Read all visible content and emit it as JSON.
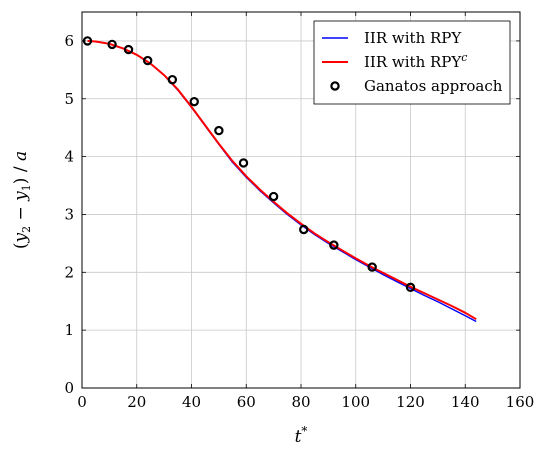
{
  "chart_data": {
    "type": "line",
    "xlabel": "t*",
    "ylabel": "(y2 − y1) / a",
    "xlim": [
      0,
      160
    ],
    "ylim": [
      0,
      6.5
    ],
    "xticks": [
      0,
      20,
      40,
      60,
      80,
      100,
      120,
      140,
      160
    ],
    "yticks": [
      0,
      1,
      2,
      3,
      4,
      5,
      6
    ],
    "grid": true,
    "legend_position": "top-right",
    "series": [
      {
        "name": "IIR with RPY",
        "style": "line",
        "color": "#0000ff",
        "x": [
          2,
          5,
          10,
          15,
          20,
          25,
          30,
          35,
          40,
          45,
          50,
          55,
          60,
          65,
          70,
          75,
          80,
          85,
          90,
          95,
          100,
          105,
          110,
          115,
          120,
          125,
          130,
          135,
          140,
          144
        ],
        "y": [
          6.0,
          5.99,
          5.95,
          5.87,
          5.76,
          5.61,
          5.41,
          5.15,
          4.85,
          4.53,
          4.21,
          3.9,
          3.64,
          3.41,
          3.2,
          3.0,
          2.82,
          2.65,
          2.5,
          2.36,
          2.22,
          2.09,
          1.96,
          1.84,
          1.72,
          1.6,
          1.49,
          1.37,
          1.25,
          1.15
        ]
      },
      {
        "name": "IIR with RPY",
        "name_sup": "c",
        "style": "line",
        "color": "#ff0000",
        "x": [
          2,
          5,
          10,
          15,
          20,
          25,
          30,
          35,
          40,
          45,
          50,
          55,
          60,
          65,
          70,
          75,
          80,
          85,
          90,
          95,
          100,
          105,
          110,
          115,
          120,
          125,
          130,
          135,
          140,
          144
        ],
        "y": [
          6.0,
          5.99,
          5.95,
          5.87,
          5.76,
          5.61,
          5.41,
          5.16,
          4.86,
          4.54,
          4.22,
          3.92,
          3.66,
          3.43,
          3.22,
          3.02,
          2.84,
          2.67,
          2.52,
          2.38,
          2.24,
          2.11,
          1.99,
          1.87,
          1.75,
          1.64,
          1.53,
          1.42,
          1.3,
          1.19
        ]
      },
      {
        "name": "Ganatos approach",
        "style": "markers",
        "color": "#000000",
        "x": [
          2,
          11,
          17,
          24,
          33,
          41,
          50,
          59,
          70,
          81,
          92,
          106,
          120
        ],
        "y": [
          6.0,
          5.94,
          5.85,
          5.66,
          5.33,
          4.95,
          4.45,
          3.89,
          3.31,
          2.74,
          2.47,
          2.09,
          1.74
        ]
      }
    ]
  }
}
